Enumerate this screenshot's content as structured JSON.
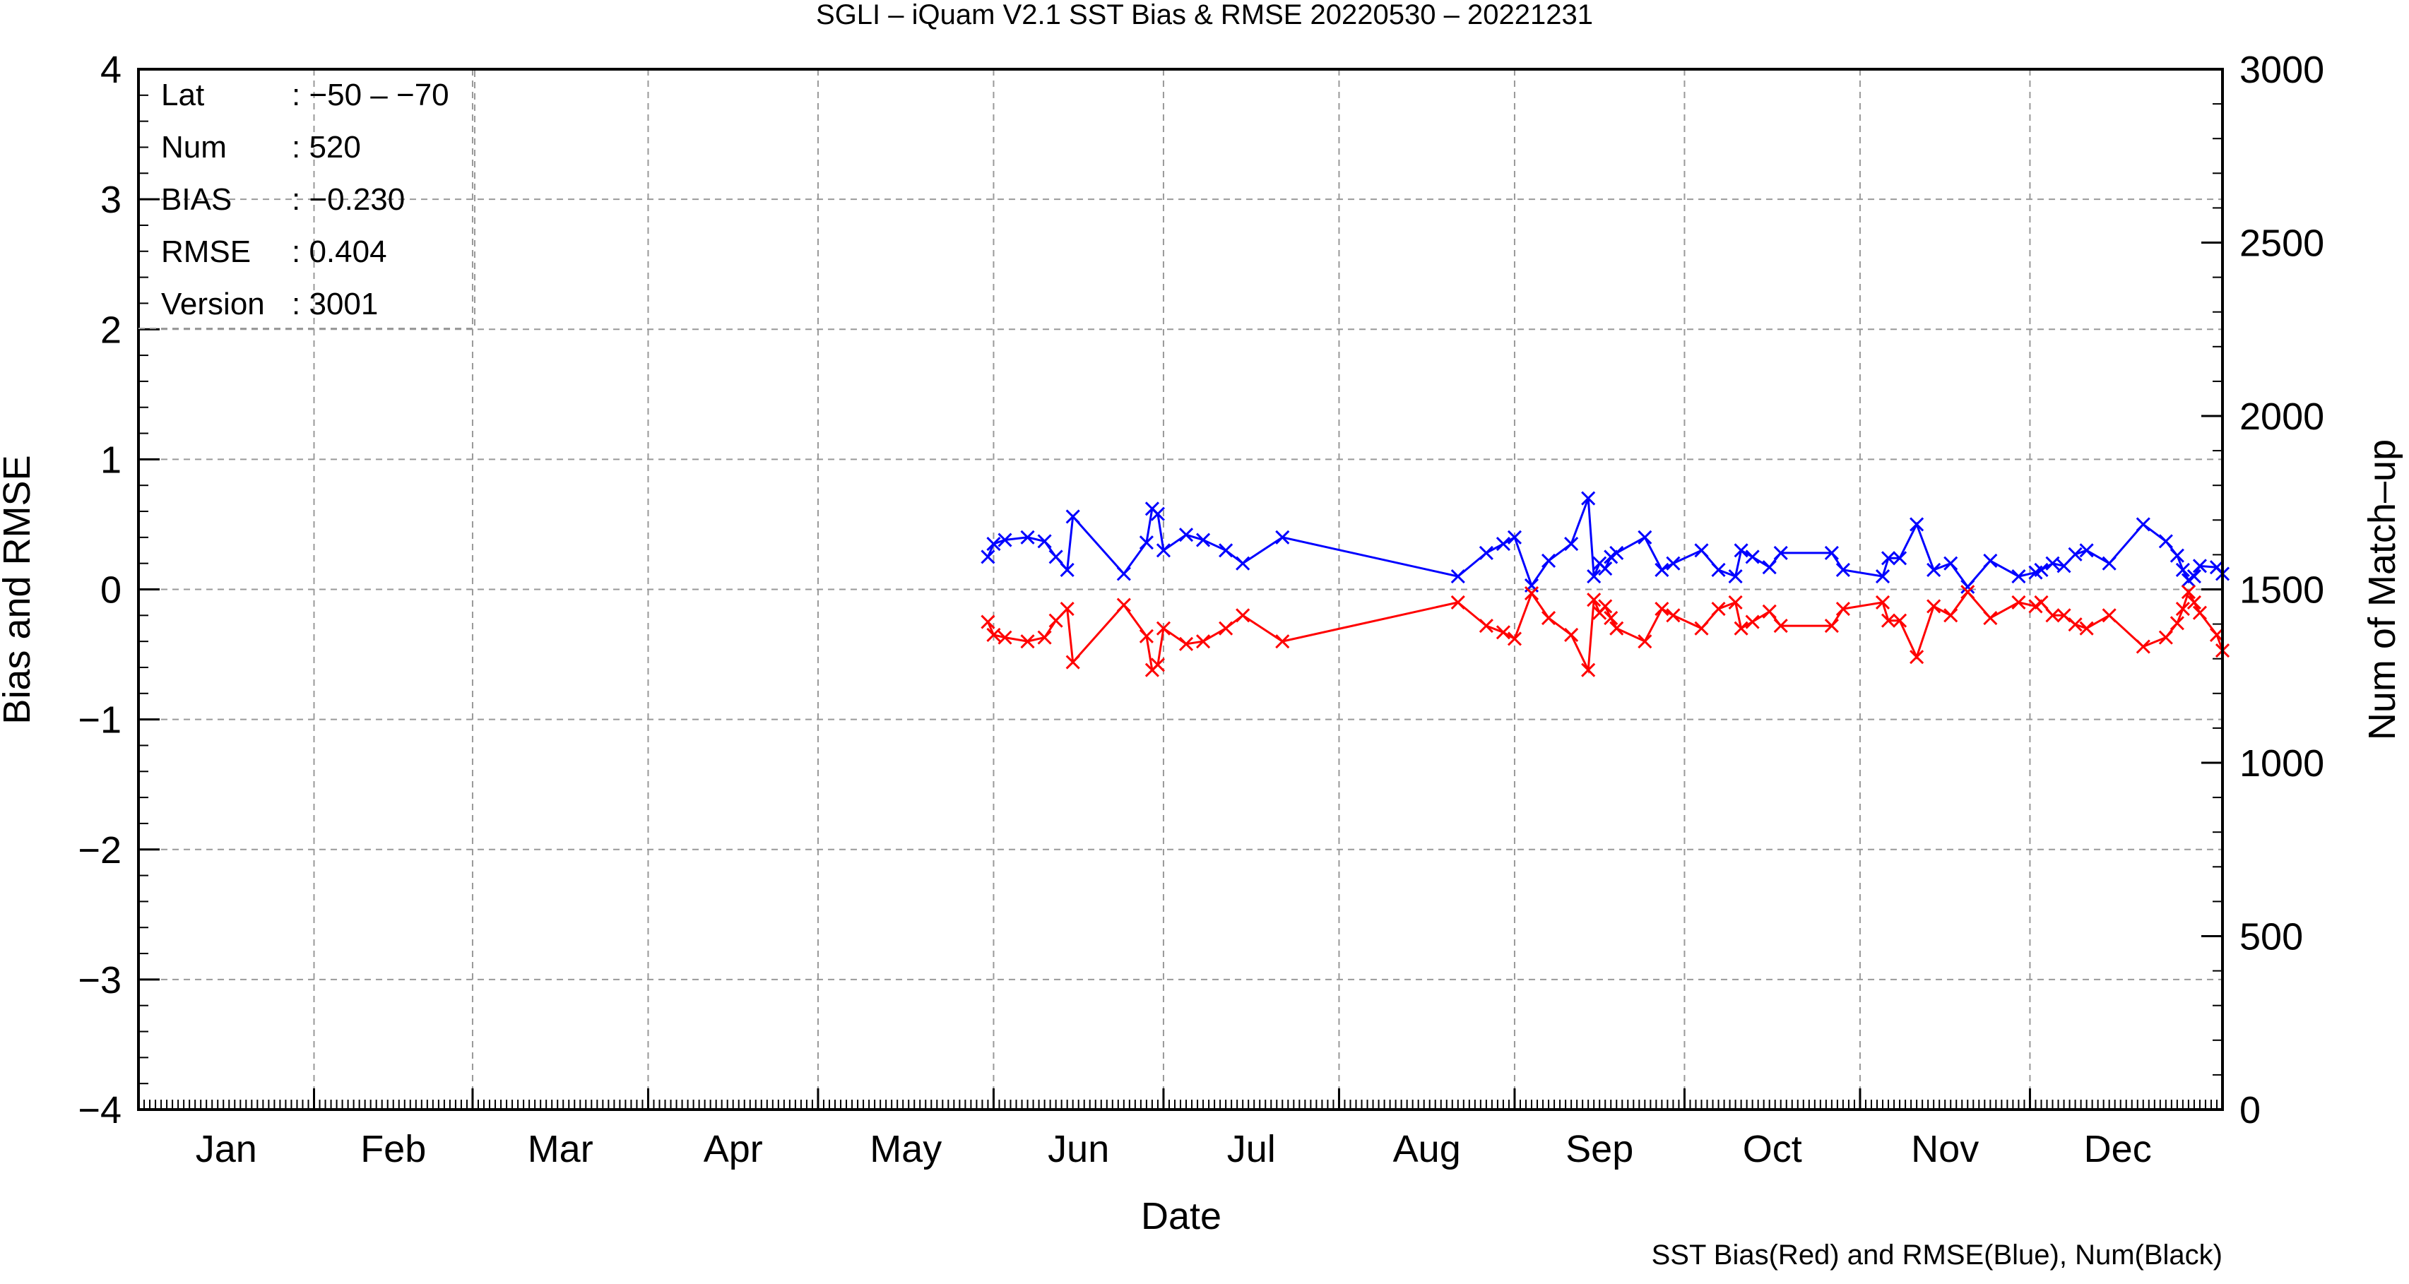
{
  "chart_data": {
    "type": "line",
    "title": "SGLI – iQuam V2.1 SST Bias & RMSE 20220530 – 20221231",
    "xlabel": "Date",
    "ylabel": "Bias and RMSE",
    "y2label": "Num of Match–up",
    "ylim": [
      -4,
      4
    ],
    "y2lim": [
      0,
      3000
    ],
    "yticks": [
      "−4",
      "−3",
      "−2",
      "−1",
      "0",
      "1",
      "2",
      "3",
      "4"
    ],
    "y2ticks": [
      "0",
      "500",
      "1000",
      "1500",
      "2000",
      "2500",
      "3000"
    ],
    "months": [
      "Jan",
      "Feb",
      "Mar",
      "Apr",
      "May",
      "Jun",
      "Jul",
      "Aug",
      "Sep",
      "Oct",
      "Nov",
      "Dec"
    ],
    "grid": true,
    "legend_note": "SST Bias(Red) and RMSE(Blue), Num(Black)",
    "stats": [
      {
        "label": "Lat",
        "value": ": −50 – −70"
      },
      {
        "label": "Num",
        "value": ": 520"
      },
      {
        "label": "BIAS",
        "value": ": −0.230"
      },
      {
        "label": "RMSE",
        "value": ": 0.404"
      },
      {
        "label": "Version",
        "value": ": 3001"
      }
    ],
    "colors": {
      "bias": "#ff0000",
      "rmse": "#0000ff",
      "grid": "#999999",
      "axis": "#000000"
    },
    "series": [
      {
        "key": "rmse",
        "x": [
          "2022-05-31",
          "2022-06-01",
          "2022-06-03",
          "2022-06-07",
          "2022-06-10",
          "2022-06-12",
          "2022-06-14",
          "2022-06-15",
          "2022-06-24",
          "2022-06-28",
          "2022-06-29",
          "2022-06-30",
          "2022-07-01",
          "2022-07-05",
          "2022-07-08",
          "2022-07-12",
          "2022-07-15",
          "2022-07-22",
          "2022-08-22",
          "2022-08-27",
          "2022-08-30",
          "2022-09-01",
          "2022-09-04",
          "2022-09-07",
          "2022-09-11",
          "2022-09-14",
          "2022-09-15",
          "2022-09-16",
          "2022-09-17",
          "2022-09-18",
          "2022-09-19",
          "2022-09-24",
          "2022-09-27",
          "2022-09-29",
          "2022-10-04",
          "2022-10-07",
          "2022-10-10",
          "2022-10-11",
          "2022-10-13",
          "2022-10-16",
          "2022-10-18",
          "2022-10-27",
          "2022-10-29",
          "2022-11-05",
          "2022-11-06",
          "2022-11-08",
          "2022-11-11",
          "2022-11-14",
          "2022-11-17",
          "2022-11-20",
          "2022-11-24",
          "2022-11-29",
          "2022-12-02",
          "2022-12-03",
          "2022-12-05",
          "2022-12-07",
          "2022-12-09",
          "2022-12-11",
          "2022-12-15",
          "2022-12-21",
          "2022-12-25",
          "2022-12-27",
          "2022-12-28",
          "2022-12-29",
          "2022-12-30",
          "2022-12-31",
          "2023-01-03",
          "2023-01-04"
        ],
        "values": [
          0.25,
          0.35,
          0.38,
          0.4,
          0.37,
          0.25,
          0.15,
          0.56,
          0.12,
          0.36,
          0.62,
          0.58,
          0.3,
          0.42,
          0.38,
          0.3,
          0.2,
          0.4,
          0.1,
          0.28,
          0.35,
          0.4,
          0.03,
          0.22,
          0.35,
          0.7,
          0.1,
          0.2,
          0.16,
          0.25,
          0.28,
          0.4,
          0.15,
          0.2,
          0.3,
          0.15,
          0.1,
          0.3,
          0.25,
          0.17,
          0.28,
          0.28,
          0.15,
          0.1,
          0.24,
          0.24,
          0.5,
          0.15,
          0.2,
          0.02,
          0.22,
          0.1,
          0.13,
          0.15,
          0.2,
          0.18,
          0.27,
          0.3,
          0.2,
          0.5,
          0.37,
          0.26,
          0.15,
          0.07,
          0.1,
          0.18,
          0.17,
          0.12
        ]
      },
      {
        "key": "bias",
        "x": [
          "2022-05-31",
          "2022-06-01",
          "2022-06-03",
          "2022-06-07",
          "2022-06-10",
          "2022-06-12",
          "2022-06-14",
          "2022-06-15",
          "2022-06-24",
          "2022-06-28",
          "2022-06-29",
          "2022-06-30",
          "2022-07-01",
          "2022-07-05",
          "2022-07-08",
          "2022-07-12",
          "2022-07-15",
          "2022-07-22",
          "2022-08-22",
          "2022-08-27",
          "2022-08-30",
          "2022-09-01",
          "2022-09-04",
          "2022-09-07",
          "2022-09-11",
          "2022-09-14",
          "2022-09-15",
          "2022-09-16",
          "2022-09-17",
          "2022-09-18",
          "2022-09-19",
          "2022-09-24",
          "2022-09-27",
          "2022-09-29",
          "2022-10-04",
          "2022-10-07",
          "2022-10-10",
          "2022-10-11",
          "2022-10-13",
          "2022-10-16",
          "2022-10-18",
          "2022-10-27",
          "2022-10-29",
          "2022-11-05",
          "2022-11-06",
          "2022-11-08",
          "2022-11-11",
          "2022-11-14",
          "2022-11-17",
          "2022-11-20",
          "2022-11-24",
          "2022-11-29",
          "2022-12-02",
          "2022-12-03",
          "2022-12-05",
          "2022-12-07",
          "2022-12-09",
          "2022-12-11",
          "2022-12-15",
          "2022-12-21",
          "2022-12-25",
          "2022-12-27",
          "2022-12-28",
          "2022-12-29",
          "2022-12-30",
          "2022-12-31",
          "2023-01-03",
          "2023-01-04"
        ],
        "values": [
          -0.25,
          -0.35,
          -0.37,
          -0.4,
          -0.37,
          -0.24,
          -0.15,
          -0.56,
          -0.12,
          -0.36,
          -0.62,
          -0.58,
          -0.3,
          -0.42,
          -0.4,
          -0.3,
          -0.2,
          -0.4,
          -0.1,
          -0.28,
          -0.33,
          -0.38,
          -0.03,
          -0.22,
          -0.35,
          -0.62,
          -0.08,
          -0.18,
          -0.13,
          -0.22,
          -0.3,
          -0.4,
          -0.15,
          -0.2,
          -0.3,
          -0.15,
          -0.1,
          -0.3,
          -0.25,
          -0.17,
          -0.28,
          -0.28,
          -0.15,
          -0.1,
          -0.24,
          -0.24,
          -0.52,
          -0.13,
          -0.2,
          -0.02,
          -0.22,
          -0.1,
          -0.13,
          -0.1,
          -0.2,
          -0.2,
          -0.27,
          -0.3,
          -0.2,
          -0.44,
          -0.37,
          -0.26,
          -0.15,
          -0.02,
          -0.1,
          -0.18,
          -0.35,
          -0.47
        ]
      }
    ]
  }
}
